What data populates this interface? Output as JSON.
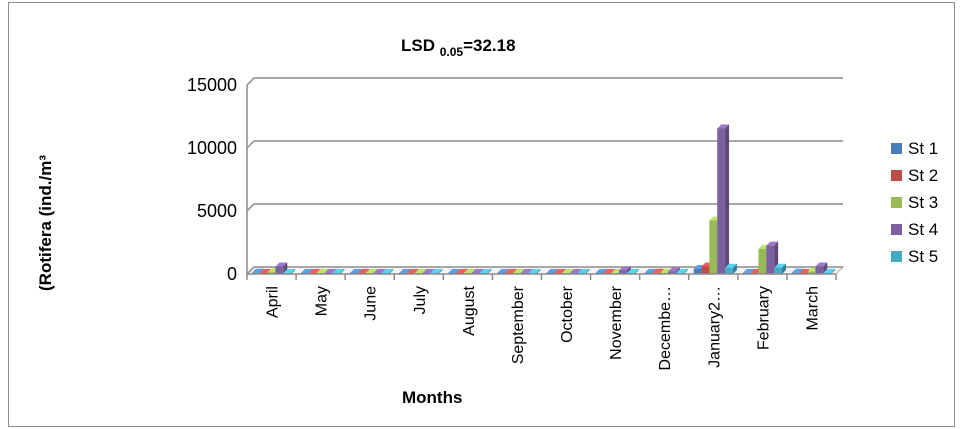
{
  "chart_data": {
    "type": "bar",
    "title_main": "LSD ",
    "title_sub": "0.05",
    "title_tail": "=32.18",
    "ylabel": "(Rotifera (ind./m³",
    "xlabel": "Months",
    "ylim": [
      0,
      15000
    ],
    "yticks": [
      "0",
      "5000",
      "10000",
      "15000"
    ],
    "grid": true,
    "legend_position": "right",
    "categories": [
      "April",
      "May",
      "June",
      "July",
      "August",
      "September",
      "October",
      "November",
      "Decembe…",
      "January2…",
      "February",
      "March"
    ],
    "series": [
      {
        "name": "St 1",
        "color": "#4a7ebb",
        "values": [
          100,
          10,
          15,
          10,
          5,
          5,
          20,
          30,
          60,
          400,
          60,
          100
        ]
      },
      {
        "name": "St 2",
        "color": "#be4b48",
        "values": [
          40,
          10,
          10,
          5,
          5,
          5,
          10,
          20,
          100,
          600,
          30,
          40
        ]
      },
      {
        "name": "St 3",
        "color": "#98b954",
        "values": [
          150,
          20,
          20,
          10,
          5,
          10,
          20,
          50,
          100,
          4250,
          2000,
          200
        ]
      },
      {
        "name": "St 4",
        "color": "#7d60a0",
        "values": [
          600,
          60,
          30,
          20,
          10,
          20,
          80,
          300,
          200,
          11550,
          2250,
          600
        ]
      },
      {
        "name": "St 5",
        "color": "#46aac5",
        "values": [
          30,
          10,
          10,
          5,
          5,
          5,
          10,
          10,
          30,
          500,
          500,
          30
        ]
      }
    ]
  }
}
